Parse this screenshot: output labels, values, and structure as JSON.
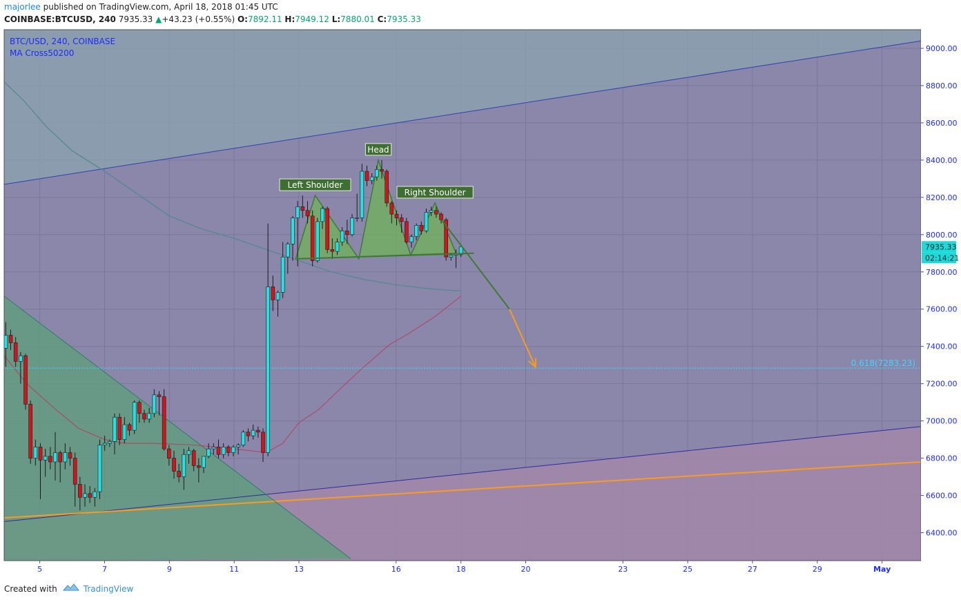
{
  "header": {
    "author": "majorlee",
    "published_text": "published on TradingView.com, April 18, 2018 01:45 UTC",
    "symbol": "COINBASE:BTCUSD, 240",
    "last": "7935.33",
    "change": "+43.23 (+0.55%)",
    "o_label": "O:",
    "o_value": "7892.11",
    "h_label": "H:",
    "h_value": "7949.12",
    "l_label": "L:",
    "l_value": "7880.01",
    "c_label": "C:",
    "c_value": "7935.33"
  },
  "legend": {
    "symbol_line": "BTC/USD, 240, COINBASE",
    "indicator": "MA Cross50200"
  },
  "footer": {
    "created_with": "Created with",
    "brand": "TradingView"
  },
  "colors": {
    "bull": "#28e0e0",
    "bear": "#d3141e",
    "pattern_fill": "#6fb35a",
    "pattern_stroke": "#3e7a34",
    "orange": "#ff9a1a",
    "fib": "#38d8ff",
    "bg": "#8a87ab",
    "axis_text": "#1d2bff"
  },
  "chart_data": {
    "type": "candlestick",
    "ylim": [
      6250,
      9100
    ],
    "y_ticks": [
      6400,
      6600,
      6800,
      7000,
      7200,
      7400,
      7600,
      7800,
      8000,
      8200,
      8400,
      8600,
      8800,
      9000
    ],
    "y_tick_labels": [
      "6400.00",
      "6600.00",
      "6800.00",
      "7000.00",
      "7200.00",
      "7400.00",
      "7600.00",
      "7800.00",
      "8000.00",
      "8200.00",
      "8400.00",
      "8600.00",
      "8800.00",
      "9000.00"
    ],
    "x_ticks": [
      {
        "label": "5",
        "day": 5
      },
      {
        "label": "7",
        "day": 7
      },
      {
        "label": "9",
        "day": 9
      },
      {
        "label": "11",
        "day": 11
      },
      {
        "label": "13",
        "day": 13
      },
      {
        "label": "16",
        "day": 16
      },
      {
        "label": "18",
        "day": 18
      },
      {
        "label": "20",
        "day": 20
      },
      {
        "label": "23",
        "day": 23
      },
      {
        "label": "25",
        "day": 25
      },
      {
        "label": "27",
        "day": 27
      },
      {
        "label": "29",
        "day": 29
      },
      {
        "label": "May",
        "day": 31
      }
    ],
    "candles": [
      {
        "o": 7390,
        "h": 7530,
        "l": 7290,
        "c": 7460
      },
      {
        "o": 7460,
        "h": 7490,
        "l": 7380,
        "c": 7420
      },
      {
        "o": 7420,
        "h": 7450,
        "l": 7290,
        "c": 7320
      },
      {
        "o": 7320,
        "h": 7370,
        "l": 7200,
        "c": 7350
      },
      {
        "o": 7350,
        "h": 7360,
        "l": 7060,
        "c": 7090
      },
      {
        "o": 7090,
        "h": 7110,
        "l": 6770,
        "c": 6800
      },
      {
        "o": 6800,
        "h": 6900,
        "l": 6760,
        "c": 6860
      },
      {
        "o": 6860,
        "h": 6880,
        "l": 6580,
        "c": 6790
      },
      {
        "o": 6790,
        "h": 6850,
        "l": 6700,
        "c": 6810
      },
      {
        "o": 6810,
        "h": 6860,
        "l": 6740,
        "c": 6780
      },
      {
        "o": 6780,
        "h": 6940,
        "l": 6680,
        "c": 6830
      },
      {
        "o": 6830,
        "h": 6840,
        "l": 6670,
        "c": 6780
      },
      {
        "o": 6780,
        "h": 6880,
        "l": 6740,
        "c": 6830
      },
      {
        "o": 6830,
        "h": 6860,
        "l": 6760,
        "c": 6800
      },
      {
        "o": 6800,
        "h": 6830,
        "l": 6540,
        "c": 6660
      },
      {
        "o": 6660,
        "h": 6700,
        "l": 6520,
        "c": 6590
      },
      {
        "o": 6590,
        "h": 6660,
        "l": 6540,
        "c": 6610
      },
      {
        "o": 6610,
        "h": 6650,
        "l": 6560,
        "c": 6590
      },
      {
        "o": 6590,
        "h": 6640,
        "l": 6540,
        "c": 6620
      },
      {
        "o": 6620,
        "h": 6900,
        "l": 6580,
        "c": 6870
      },
      {
        "o": 6870,
        "h": 6920,
        "l": 6840,
        "c": 6880
      },
      {
        "o": 6880,
        "h": 6900,
        "l": 6860,
        "c": 6890
      },
      {
        "o": 6890,
        "h": 7040,
        "l": 6820,
        "c": 7020
      },
      {
        "o": 7020,
        "h": 7040,
        "l": 6870,
        "c": 6900
      },
      {
        "o": 6900,
        "h": 7020,
        "l": 6880,
        "c": 6980
      },
      {
        "o": 6980,
        "h": 6990,
        "l": 6920,
        "c": 6950
      },
      {
        "o": 6950,
        "h": 7110,
        "l": 6930,
        "c": 7100
      },
      {
        "o": 7100,
        "h": 7110,
        "l": 6990,
        "c": 7040
      },
      {
        "o": 7040,
        "h": 7060,
        "l": 6990,
        "c": 7010
      },
      {
        "o": 7010,
        "h": 7070,
        "l": 6990,
        "c": 7040
      },
      {
        "o": 7040,
        "h": 7170,
        "l": 7020,
        "c": 7140
      },
      {
        "o": 7140,
        "h": 7160,
        "l": 7030,
        "c": 7130
      },
      {
        "o": 7130,
        "h": 7170,
        "l": 6840,
        "c": 6850
      },
      {
        "o": 6850,
        "h": 6870,
        "l": 6760,
        "c": 6800
      },
      {
        "o": 6800,
        "h": 6840,
        "l": 6690,
        "c": 6730
      },
      {
        "o": 6730,
        "h": 6770,
        "l": 6670,
        "c": 6700
      },
      {
        "o": 6700,
        "h": 6850,
        "l": 6630,
        "c": 6820
      },
      {
        "o": 6820,
        "h": 6860,
        "l": 6770,
        "c": 6840
      },
      {
        "o": 6840,
        "h": 6850,
        "l": 6730,
        "c": 6760
      },
      {
        "o": 6760,
        "h": 6800,
        "l": 6670,
        "c": 6750
      },
      {
        "o": 6750,
        "h": 6810,
        "l": 6720,
        "c": 6810
      },
      {
        "o": 6810,
        "h": 6880,
        "l": 6800,
        "c": 6850
      },
      {
        "o": 6850,
        "h": 6880,
        "l": 6820,
        "c": 6860
      },
      {
        "o": 6860,
        "h": 6900,
        "l": 6800,
        "c": 6820
      },
      {
        "o": 6820,
        "h": 6880,
        "l": 6800,
        "c": 6860
      },
      {
        "o": 6860,
        "h": 6870,
        "l": 6810,
        "c": 6830
      },
      {
        "o": 6830,
        "h": 6870,
        "l": 6810,
        "c": 6860
      },
      {
        "o": 6860,
        "h": 6880,
        "l": 6820,
        "c": 6870
      },
      {
        "o": 6870,
        "h": 6950,
        "l": 6860,
        "c": 6940
      },
      {
        "o": 6940,
        "h": 6960,
        "l": 6890,
        "c": 6920
      },
      {
        "o": 6920,
        "h": 6980,
        "l": 6900,
        "c": 6950
      },
      {
        "o": 6950,
        "h": 6970,
        "l": 6910,
        "c": 6940
      },
      {
        "o": 6940,
        "h": 6960,
        "l": 6780,
        "c": 6830
      },
      {
        "o": 6830,
        "h": 8060,
        "l": 6810,
        "c": 7720
      },
      {
        "o": 7720,
        "h": 7780,
        "l": 7590,
        "c": 7650
      },
      {
        "o": 7650,
        "h": 7700,
        "l": 7560,
        "c": 7690
      },
      {
        "o": 7690,
        "h": 7960,
        "l": 7660,
        "c": 7880
      },
      {
        "o": 7880,
        "h": 7960,
        "l": 7790,
        "c": 7950
      },
      {
        "o": 7950,
        "h": 8100,
        "l": 7860,
        "c": 8090
      },
      {
        "o": 8090,
        "h": 8180,
        "l": 7830,
        "c": 8150
      },
      {
        "o": 8150,
        "h": 8210,
        "l": 8090,
        "c": 8130
      },
      {
        "o": 8130,
        "h": 8180,
        "l": 8060,
        "c": 8100
      },
      {
        "o": 8100,
        "h": 8130,
        "l": 7830,
        "c": 7860
      },
      {
        "o": 7860,
        "h": 8090,
        "l": 7850,
        "c": 8070
      },
      {
        "o": 8070,
        "h": 8150,
        "l": 8030,
        "c": 8140
      },
      {
        "o": 8140,
        "h": 8150,
        "l": 7900,
        "c": 7920
      },
      {
        "o": 7920,
        "h": 7980,
        "l": 7870,
        "c": 7910
      },
      {
        "o": 7910,
        "h": 7980,
        "l": 7890,
        "c": 7960
      },
      {
        "o": 7960,
        "h": 8040,
        "l": 7940,
        "c": 8020
      },
      {
        "o": 8020,
        "h": 8080,
        "l": 7950,
        "c": 8000
      },
      {
        "o": 8000,
        "h": 8110,
        "l": 7990,
        "c": 8090
      },
      {
        "o": 8090,
        "h": 8220,
        "l": 8070,
        "c": 8090
      },
      {
        "o": 8090,
        "h": 8380,
        "l": 8070,
        "c": 8340
      },
      {
        "o": 8340,
        "h": 8370,
        "l": 8260,
        "c": 8290
      },
      {
        "o": 8290,
        "h": 8330,
        "l": 8270,
        "c": 8310
      },
      {
        "o": 8310,
        "h": 8370,
        "l": 8290,
        "c": 8350
      },
      {
        "o": 8350,
        "h": 8400,
        "l": 8300,
        "c": 8340
      },
      {
        "o": 8340,
        "h": 8350,
        "l": 8150,
        "c": 8170
      },
      {
        "o": 8170,
        "h": 8180,
        "l": 8060,
        "c": 8110
      },
      {
        "o": 8110,
        "h": 8130,
        "l": 8050,
        "c": 8090
      },
      {
        "o": 8090,
        "h": 8110,
        "l": 8010,
        "c": 8070
      },
      {
        "o": 8070,
        "h": 8090,
        "l": 7950,
        "c": 7960
      },
      {
        "o": 7960,
        "h": 8000,
        "l": 7930,
        "c": 7990
      },
      {
        "o": 7990,
        "h": 8060,
        "l": 7970,
        "c": 8050
      },
      {
        "o": 8050,
        "h": 8070,
        "l": 8000,
        "c": 8020
      },
      {
        "o": 8020,
        "h": 8140,
        "l": 8010,
        "c": 8120
      },
      {
        "o": 8120,
        "h": 8150,
        "l": 8100,
        "c": 8130
      },
      {
        "o": 8130,
        "h": 8150,
        "l": 8090,
        "c": 8110
      },
      {
        "o": 8110,
        "h": 8120,
        "l": 8060,
        "c": 8080
      },
      {
        "o": 8080,
        "h": 8090,
        "l": 7860,
        "c": 7880
      },
      {
        "o": 7880,
        "h": 7900,
        "l": 7860,
        "c": 7890
      },
      {
        "o": 7890,
        "h": 7920,
        "l": 7820,
        "c": 7900
      },
      {
        "o": 7892.11,
        "h": 7949.12,
        "l": 7880.01,
        "c": 7935.33
      }
    ],
    "ma50": [
      [
        3.9,
        7350
      ],
      [
        4.6,
        7200
      ],
      [
        5.5,
        7060
      ],
      [
        6.2,
        6960
      ],
      [
        7.0,
        6900
      ],
      [
        7.6,
        6880
      ],
      [
        8.5,
        6880
      ],
      [
        9.8,
        6870
      ],
      [
        11.0,
        6850
      ],
      [
        12.0,
        6830
      ],
      [
        12.5,
        6880
      ],
      [
        13.0,
        6990
      ],
      [
        13.6,
        7060
      ],
      [
        14.2,
        7160
      ],
      [
        15.0,
        7290
      ],
      [
        15.8,
        7410
      ],
      [
        16.4,
        7470
      ],
      [
        17.2,
        7560
      ],
      [
        18.0,
        7670
      ]
    ],
    "ma200": [
      [
        3.9,
        8820
      ],
      [
        4.5,
        8720
      ],
      [
        5.2,
        8580
      ],
      [
        6.0,
        8450
      ],
      [
        7.0,
        8340
      ],
      [
        8.0,
        8220
      ],
      [
        9.0,
        8100
      ],
      [
        10.0,
        8030
      ],
      [
        11.0,
        7980
      ],
      [
        12.0,
        7920
      ],
      [
        13.0,
        7860
      ],
      [
        14.0,
        7800
      ],
      [
        15.0,
        7760
      ],
      [
        16.0,
        7730
      ],
      [
        17.0,
        7710
      ],
      [
        17.8,
        7700
      ],
      [
        18.0,
        7700
      ]
    ],
    "upper_channel": [
      [
        3.9,
        8270
      ],
      [
        32.2,
        9040
      ]
    ],
    "lower_channel": [
      [
        3.9,
        6460
      ],
      [
        32.2,
        6970
      ]
    ],
    "orange_trend": [
      [
        3.9,
        6480
      ],
      [
        32.2,
        6780
      ]
    ],
    "falling_channel": [
      [
        3.9,
        7670
      ],
      [
        14.6,
        6260
      ]
    ],
    "pattern": [
      [
        12.9,
        7870
      ],
      [
        13.5,
        8210
      ],
      [
        14.85,
        7870
      ],
      [
        15.45,
        8400
      ],
      [
        16.45,
        7890
      ],
      [
        17.2,
        8170
      ],
      [
        17.85,
        7900
      ]
    ],
    "neckline": [
      [
        12.9,
        7870
      ],
      [
        18.4,
        7900
      ]
    ],
    "projection": [
      [
        17.4,
        8080
      ],
      [
        19.5,
        7600
      ]
    ],
    "target_arrow": [
      [
        19.5,
        7600
      ],
      [
        20.3,
        7290
      ]
    ],
    "fib_level": 7283.23,
    "fib_label": "0.618(7283.23)",
    "pattern_labels": [
      "Left Shoulder",
      "Head",
      "Right Shoulder"
    ],
    "price_badge": "7935.33",
    "time_badge": "02:14:21"
  }
}
